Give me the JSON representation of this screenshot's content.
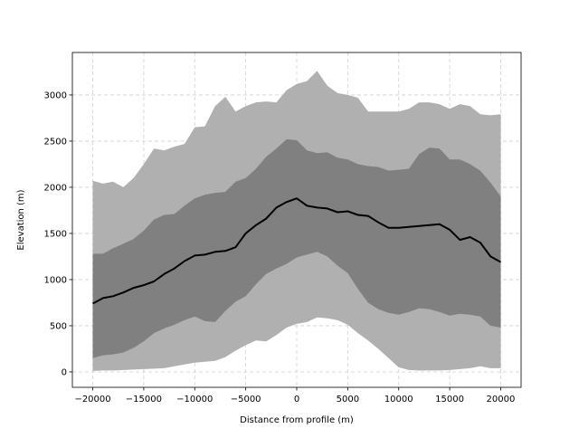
{
  "chart_data": {
    "type": "area",
    "title": "",
    "xlabel": "Distance from profile (m)",
    "ylabel": "Elevation (m)",
    "xlim": [
      -22000,
      22000
    ],
    "ylim": [
      -167,
      3460
    ],
    "xticks": [
      -20000,
      -15000,
      -10000,
      -5000,
      0,
      5000,
      10000,
      15000,
      20000
    ],
    "yticks": [
      0,
      500,
      1000,
      1500,
      2000,
      2500,
      3000
    ],
    "grid": true,
    "legend": "none",
    "x": [
      -20000,
      -19000,
      -18000,
      -17000,
      -16000,
      -15000,
      -14000,
      -13000,
      -12000,
      -11000,
      -10000,
      -9000,
      -8000,
      -7000,
      -6000,
      -5000,
      -4000,
      -3000,
      -2000,
      -1000,
      0,
      1000,
      2000,
      3000,
      4000,
      5000,
      6000,
      7000,
      8000,
      9000,
      10000,
      11000,
      12000,
      13000,
      14000,
      15000,
      16000,
      17000,
      18000,
      19000,
      20000
    ],
    "bands": [
      {
        "role": "min-max",
        "color": "#b0b0b0",
        "lower": [
          10,
          15,
          15,
          20,
          25,
          30,
          35,
          40,
          60,
          80,
          100,
          110,
          120,
          160,
          230,
          290,
          340,
          330,
          400,
          480,
          520,
          540,
          590,
          580,
          560,
          510,
          420,
          340,
          250,
          150,
          50,
          20,
          15,
          15,
          15,
          20,
          30,
          40,
          60,
          40,
          40
        ],
        "upper": [
          2070,
          2040,
          2060,
          2000,
          2100,
          2250,
          2420,
          2400,
          2440,
          2470,
          2650,
          2660,
          2880,
          2980,
          2820,
          2880,
          2920,
          2930,
          2920,
          3050,
          3120,
          3150,
          3260,
          3100,
          3020,
          3000,
          2970,
          2820,
          2820,
          2820,
          2820,
          2850,
          2920,
          2920,
          2900,
          2850,
          2900,
          2880,
          2790,
          2780,
          2790
        ]
      },
      {
        "role": "inner-range",
        "color": "#808080",
        "lower": [
          150,
          180,
          190,
          210,
          260,
          330,
          420,
          470,
          510,
          560,
          600,
          550,
          540,
          660,
          760,
          820,
          950,
          1060,
          1120,
          1170,
          1240,
          1270,
          1300,
          1250,
          1150,
          1070,
          900,
          750,
          680,
          640,
          620,
          650,
          690,
          680,
          650,
          610,
          630,
          620,
          600,
          500,
          480
        ],
        "upper": [
          1280,
          1280,
          1340,
          1390,
          1440,
          1530,
          1650,
          1700,
          1710,
          1800,
          1880,
          1920,
          1940,
          1950,
          2060,
          2100,
          2200,
          2330,
          2420,
          2520,
          2510,
          2400,
          2370,
          2380,
          2320,
          2300,
          2250,
          2230,
          2220,
          2180,
          2190,
          2200,
          2360,
          2430,
          2420,
          2300,
          2300,
          2250,
          2180,
          2050,
          1900
        ]
      }
    ],
    "line": {
      "role": "median",
      "color": "#000000",
      "values": [
        740,
        800,
        820,
        860,
        910,
        940,
        980,
        1060,
        1120,
        1200,
        1260,
        1270,
        1300,
        1310,
        1350,
        1500,
        1590,
        1660,
        1780,
        1840,
        1880,
        1800,
        1780,
        1770,
        1730,
        1740,
        1700,
        1690,
        1620,
        1560,
        1560,
        1570,
        1580,
        1590,
        1600,
        1540,
        1430,
        1460,
        1400,
        1250,
        1190
      ]
    }
  }
}
